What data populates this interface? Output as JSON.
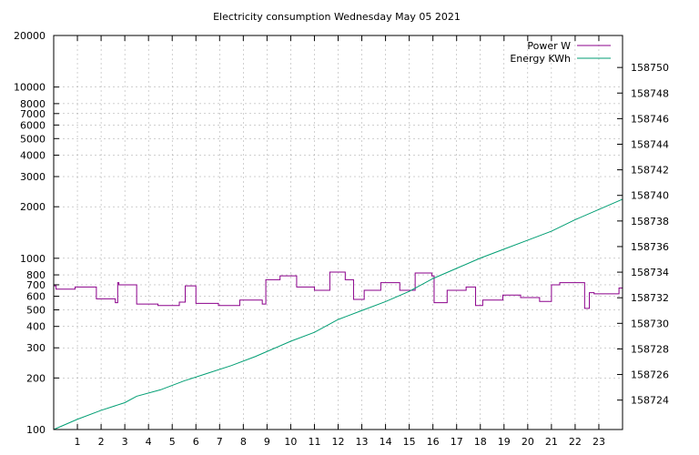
{
  "chart_data": {
    "type": "line",
    "title": "Electricity consumption Wednesday May 05 2021",
    "xlabel": "",
    "ylabel": "",
    "y2label": "",
    "grid": true,
    "legend_position": "top-right",
    "x_range": [
      0,
      24
    ],
    "x_ticks": [
      1,
      2,
      3,
      4,
      5,
      6,
      7,
      8,
      9,
      10,
      11,
      12,
      13,
      14,
      15,
      16,
      17,
      18,
      19,
      20,
      21,
      22,
      23
    ],
    "y_axis": {
      "scale": "log",
      "range": [
        100,
        20000
      ],
      "ticks": [
        100,
        200,
        300,
        400,
        500,
        600,
        700,
        800,
        1000,
        2000,
        3000,
        4000,
        5000,
        6000,
        7000,
        8000,
        10000,
        20000
      ]
    },
    "y2_axis": {
      "scale": "linear",
      "range": [
        158721.7,
        158752.5
      ],
      "ticks": [
        158724,
        158726,
        158728,
        158730,
        158732,
        158734,
        158736,
        158738,
        158740,
        158742,
        158744,
        158746,
        158748,
        158750
      ]
    },
    "series": [
      {
        "name": "Power W",
        "axis": "y",
        "color": "#8b008b",
        "step": true,
        "points": [
          [
            0.0,
            690
          ],
          [
            0.1,
            660
          ],
          [
            0.9,
            680
          ],
          [
            1.8,
            580
          ],
          [
            2.6,
            550
          ],
          [
            2.7,
            720
          ],
          [
            2.75,
            700
          ],
          [
            3.5,
            540
          ],
          [
            4.4,
            530
          ],
          [
            5.3,
            555
          ],
          [
            5.55,
            690
          ],
          [
            6.0,
            545
          ],
          [
            6.95,
            530
          ],
          [
            7.85,
            570
          ],
          [
            8.8,
            540
          ],
          [
            8.95,
            750
          ],
          [
            9.55,
            790
          ],
          [
            10.25,
            680
          ],
          [
            11.0,
            650
          ],
          [
            11.65,
            830
          ],
          [
            12.3,
            750
          ],
          [
            12.65,
            575
          ],
          [
            13.1,
            650
          ],
          [
            13.8,
            720
          ],
          [
            14.6,
            650
          ],
          [
            15.25,
            820
          ],
          [
            15.95,
            790
          ],
          [
            16.05,
            550
          ],
          [
            16.6,
            650
          ],
          [
            17.4,
            680
          ],
          [
            17.8,
            530
          ],
          [
            18.1,
            570
          ],
          [
            18.95,
            610
          ],
          [
            19.7,
            590
          ],
          [
            20.5,
            560
          ],
          [
            21.0,
            700
          ],
          [
            21.35,
            720
          ],
          [
            22.4,
            510
          ],
          [
            22.6,
            630
          ],
          [
            22.8,
            620
          ],
          [
            23.85,
            670
          ],
          [
            24.0,
            670
          ]
        ]
      },
      {
        "name": "Energy KWh",
        "axis": "y2",
        "color": "#009e73",
        "step": false,
        "points": [
          [
            0.0,
            158721.7
          ],
          [
            1.0,
            158722.5
          ],
          [
            2.0,
            158723.2
          ],
          [
            3.0,
            158723.8
          ],
          [
            3.5,
            158724.3
          ],
          [
            4.5,
            158724.8
          ],
          [
            5.5,
            158725.5
          ],
          [
            6.5,
            158726.1
          ],
          [
            7.5,
            158726.7
          ],
          [
            8.5,
            158727.4
          ],
          [
            9.0,
            158727.8
          ],
          [
            10.0,
            158728.6
          ],
          [
            11.0,
            158729.3
          ],
          [
            12.0,
            158730.3
          ],
          [
            13.0,
            158731.0
          ],
          [
            14.0,
            158731.7
          ],
          [
            15.0,
            158732.5
          ],
          [
            16.0,
            158733.5
          ],
          [
            17.0,
            158734.3
          ],
          [
            18.0,
            158735.1
          ],
          [
            19.0,
            158735.8
          ],
          [
            20.0,
            158736.5
          ],
          [
            21.0,
            158737.2
          ],
          [
            22.0,
            158738.1
          ],
          [
            23.0,
            158738.9
          ],
          [
            24.0,
            158739.7
          ]
        ]
      }
    ]
  }
}
